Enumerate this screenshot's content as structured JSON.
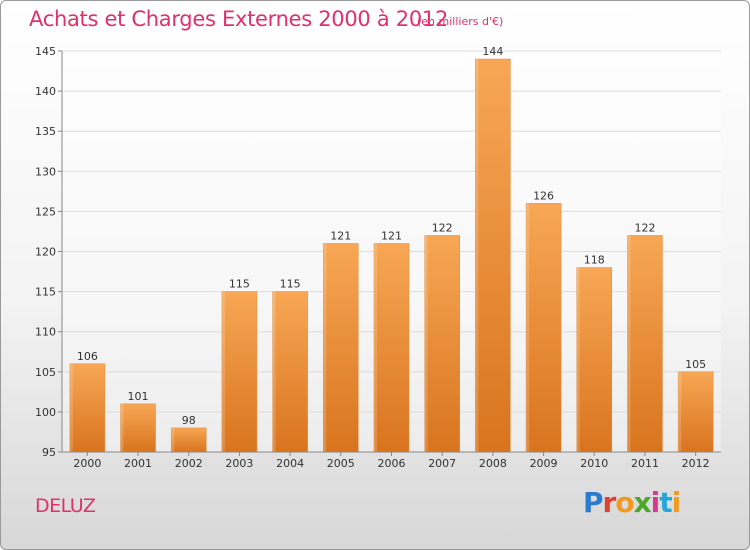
{
  "chart_data": {
    "type": "bar",
    "title": "Achats et Charges Externes 2000 à 2012",
    "subtitle": "(en milliers d'€)",
    "categories": [
      "2000",
      "2001",
      "2002",
      "2003",
      "2004",
      "2005",
      "2006",
      "2007",
      "2008",
      "2009",
      "2010",
      "2011",
      "2012"
    ],
    "values": [
      106,
      101,
      98,
      115,
      115,
      121,
      121,
      122,
      144,
      126,
      118,
      122,
      105
    ],
    "ylim": [
      95,
      145
    ],
    "yticks": [
      95,
      100,
      105,
      110,
      115,
      120,
      125,
      130,
      135,
      140,
      145
    ],
    "xlabel": "",
    "ylabel": "",
    "grid": "horizontal",
    "bar_color_top": "#f7a755",
    "bar_color_bottom": "#d9741e"
  },
  "commune": "DELUZ",
  "brand": {
    "logo_letters": [
      "P",
      "r",
      "o",
      "x",
      "i",
      "t",
      "i"
    ]
  }
}
